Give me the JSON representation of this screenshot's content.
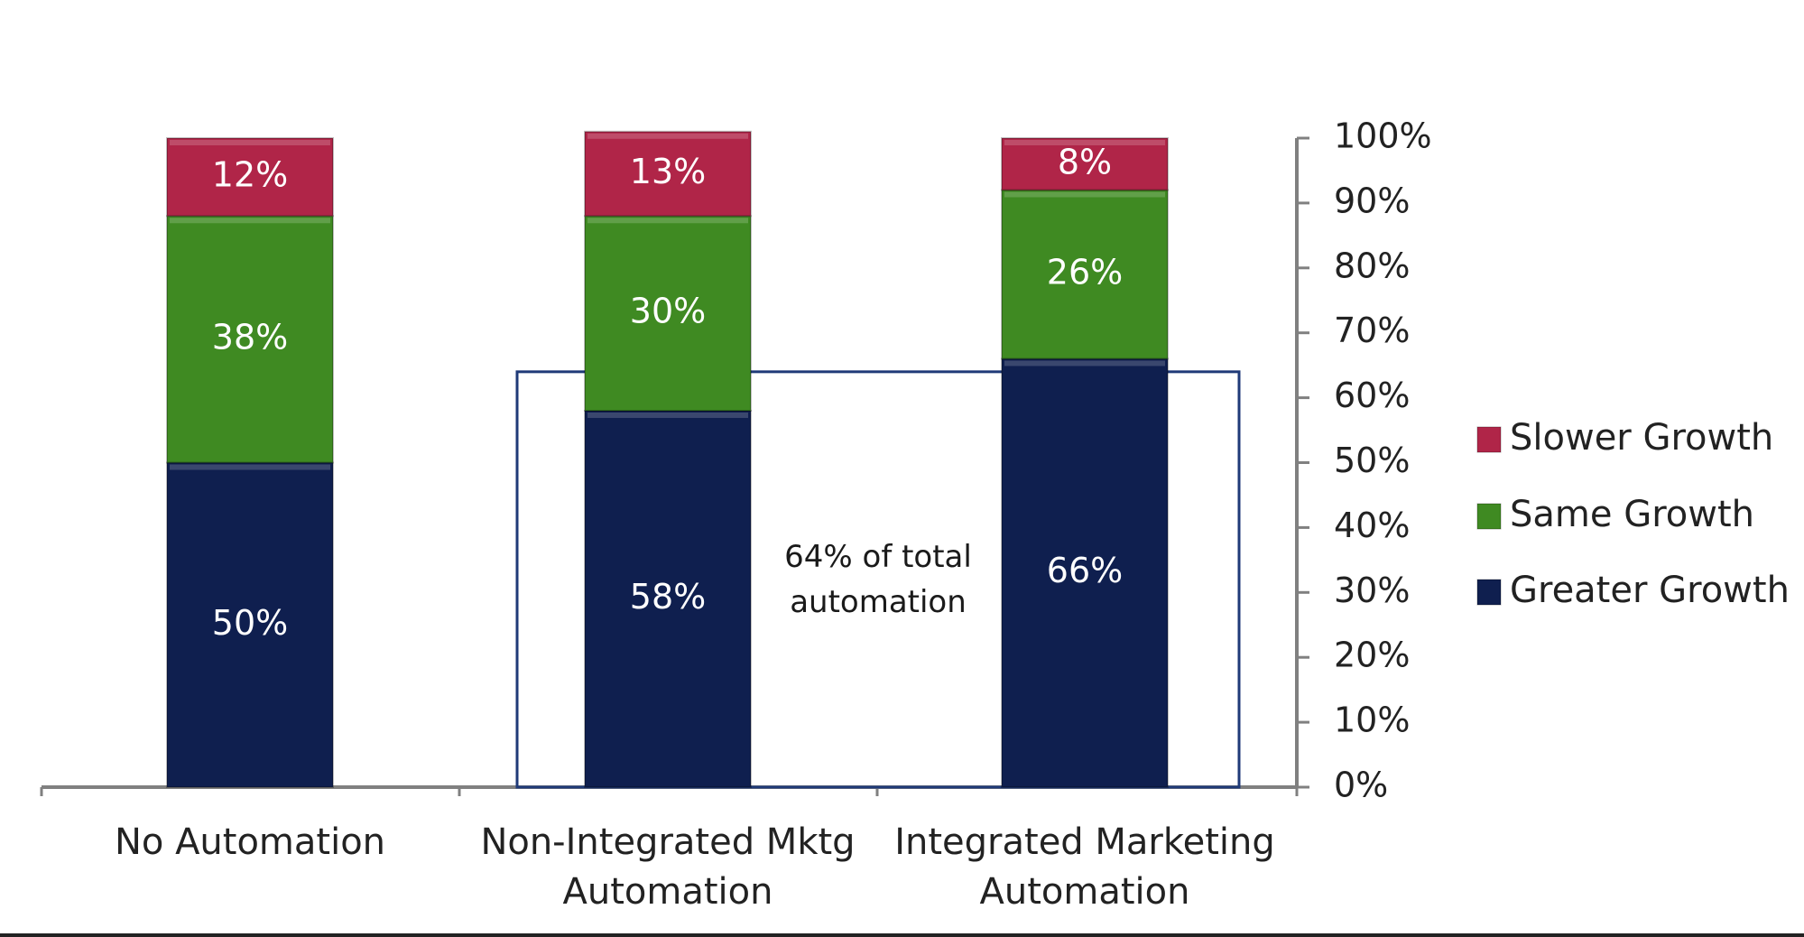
{
  "chart_data": {
    "type": "bar",
    "stacked": true,
    "categories": [
      [
        "No Automation"
      ],
      [
        "Non-Integrated Mktg",
        "Automation"
      ],
      [
        "Integrated Marketing",
        "Automation"
      ]
    ],
    "series": [
      {
        "name": "Greater Growth",
        "values": [
          50,
          58,
          66
        ],
        "labels": [
          "50%",
          "58%",
          "66%"
        ],
        "color": "#0f1f4f"
      },
      {
        "name": "Same Growth",
        "values": [
          38,
          30,
          26
        ],
        "labels": [
          "38%",
          "30%",
          "26%"
        ],
        "color": "#3f8a22"
      },
      {
        "name": "Slower Growth",
        "values": [
          12,
          13,
          8
        ],
        "labels": [
          "12%",
          "13%",
          "8%"
        ],
        "color": "#b02548"
      }
    ],
    "legend_order": [
      "Slower Growth",
      "Same Growth",
      "Greater Growth"
    ],
    "legend_placement": "right",
    "y_axis": {
      "position": "right",
      "range": [
        0,
        100
      ],
      "ticks": [
        "0%",
        "10%",
        "20%",
        "30%",
        "40%",
        "50%",
        "60%",
        "70%",
        "80%",
        "90%",
        "100%"
      ]
    },
    "annotation": {
      "lines": [
        "64%  of total",
        "automation"
      ],
      "value": 64,
      "spans_categories": [
        1,
        2
      ]
    },
    "box_color": "#1f3a78",
    "axis_color": "#808080"
  }
}
